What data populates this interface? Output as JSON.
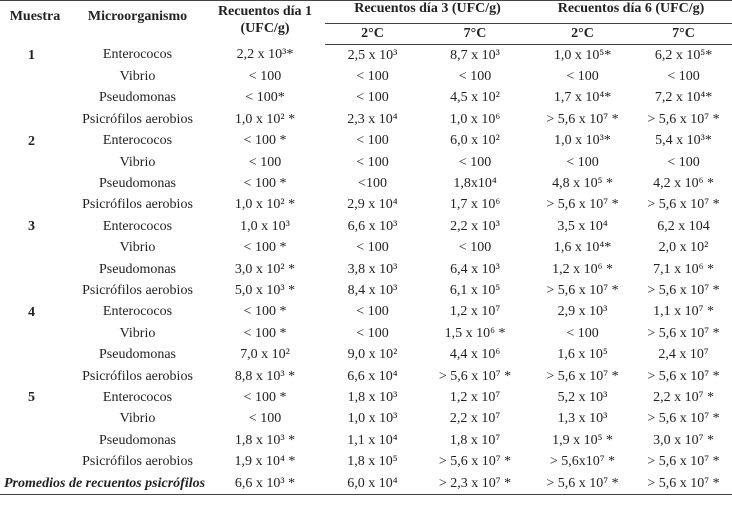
{
  "table": {
    "header": {
      "muestra": "Muestra",
      "microorganismo": "Microorganismo",
      "dia1": "Recuentos día 1 (UFC/g)",
      "dia3": "Recuentos día 3 (UFC/g)",
      "dia6": "Recuentos día 6 (UFC/g)",
      "subheaders": [
        "2°C",
        "7°C",
        "2°C",
        "7°C"
      ]
    },
    "groups": [
      {
        "muestra": "1",
        "rows": [
          {
            "organism": "Enterococos",
            "values": [
              "2,2 x 10³*",
              "2,5 x 10³",
              "8,7 x 10³",
              "1,0 x 10⁵*",
              "6,2 x 10⁵*"
            ]
          },
          {
            "organism": "Vibrio",
            "values": [
              "< 100",
              "< 100",
              "< 100",
              "< 100",
              "< 100"
            ]
          },
          {
            "organism": "Pseudomonas",
            "values": [
              "< 100*",
              "< 100",
              "4,5 x 10²",
              "1,7 x 10⁴*",
              "7,2 x 10⁴*"
            ]
          },
          {
            "organism": "Psicrófilos aerobios",
            "values": [
              "1,0 x 10² *",
              "2,3 x 10⁴",
              "1,0 x 10⁶",
              "> 5,6 x 10⁷ *",
              "> 5,6 x 10⁷ *"
            ]
          }
        ]
      },
      {
        "muestra": "2",
        "rows": [
          {
            "organism": "Enterococos",
            "values": [
              "< 100 *",
              "< 100",
              "6,0 x 10²",
              "1,0 x 10³*",
              "5,4 x 10³*"
            ]
          },
          {
            "organism": "Vibrio",
            "values": [
              "< 100",
              "< 100",
              "< 100",
              "< 100",
              "< 100"
            ]
          },
          {
            "organism": "Pseudomonas",
            "values": [
              "< 100 *",
              "<100",
              "1,8x10⁴",
              "4,8 x 10⁵ *",
              "4,2 x 10⁶ *"
            ]
          },
          {
            "organism": "Psicrófilos aerobios",
            "values": [
              "1,0 x 10² *",
              "2,9 x 10⁴",
              "1,7 x 10⁶",
              "> 5,6 x 10⁷ *",
              "> 5,6 x 10⁷ *"
            ]
          }
        ]
      },
      {
        "muestra": "3",
        "rows": [
          {
            "organism": "Enterococos",
            "values": [
              "1,0 x 10³",
              "6,6 x 10³",
              "2,2 x 10³",
              "3,5 x 10⁴",
              "6,2 x 104"
            ]
          },
          {
            "organism": "Vibrio",
            "values": [
              "< 100 *",
              "< 100",
              "< 100",
              "1,6 x 10⁴*",
              "2,0 x 10²"
            ]
          },
          {
            "organism": "Pseudomonas",
            "values": [
              "3,0 x 10² *",
              "3,8 x 10³",
              "6,4 x 10³",
              "1,2 x 10⁶ *",
              "7,1 x 10⁶ *"
            ]
          },
          {
            "organism": "Psicrófilos aerobios",
            "values": [
              "5,0 x 10³ *",
              "8,4 x 10³",
              "6,1 x 10⁵",
              "> 5,6 x 10⁷ *",
              "> 5,6 x 10⁷ *"
            ]
          }
        ]
      },
      {
        "muestra": "4",
        "rows": [
          {
            "organism": "Enterococos",
            "values": [
              "< 100 *",
              "< 100",
              "1,2 x 10⁷",
              "2,9 x 10³",
              "1,1 x 10⁷ *"
            ]
          },
          {
            "organism": "Vibrio",
            "values": [
              "< 100 *",
              "< 100",
              "1,5 x 10⁶ *",
              "< 100",
              "> 5,6 x 10⁷ *"
            ]
          },
          {
            "organism": "Pseudomonas",
            "values": [
              "7,0 x 10²",
              "9,0 x 10²",
              "4,4 x 10⁶",
              "1,6 x 10⁵",
              "2,4 x 10⁷"
            ]
          },
          {
            "organism": "Psicrófilos aerobios",
            "values": [
              "8,8 x 10³ *",
              "6,6 x 10⁴",
              "> 5,6 x 10⁷ *",
              "> 5,6 x 10⁷ *",
              "> 5,6 x 10⁷ *"
            ]
          }
        ]
      },
      {
        "muestra": "5",
        "rows": [
          {
            "organism": "Enterococos",
            "values": [
              "< 100 *",
              "1,8 x 10³",
              "1,2 x 10⁷",
              "5,2 x 10³",
              "2,2 x 10⁷ *"
            ]
          },
          {
            "organism": "Vibrio",
            "values": [
              "< 100",
              "1,0 x 10³",
              "2,2 x 10⁷",
              "1,3 x 10³",
              "> 5,6 x 10⁷ *"
            ]
          },
          {
            "organism": "Pseudomonas",
            "values": [
              "1,8 x 10³ *",
              "1,1 x 10⁴",
              "1,8 x 10⁷",
              "1,9 x 10⁵ *",
              "3,0 x 10⁷ *"
            ]
          },
          {
            "organism": "Psicrófilos aerobios",
            "values": [
              "1,9 x 10⁴ *",
              "1,8 x 10⁵",
              "> 5,6 x 10⁷ *",
              "> 5,6x10⁷ *",
              "> 5,6 x 10⁷ *"
            ]
          }
        ]
      }
    ],
    "footer": {
      "label": "Promedios de recuentos psicrófilos",
      "values": [
        "6,6 x 10³ *",
        "6,0 x 10⁴",
        "> 2,3 x 10⁷ *",
        "> 5,6 x 10⁷ *",
        "> 5,6 x 10⁷ *"
      ]
    }
  }
}
